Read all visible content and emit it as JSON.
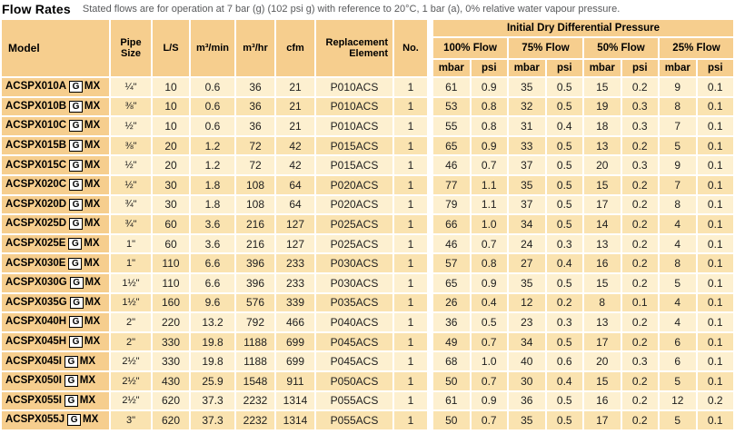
{
  "title_bar": {
    "title": "Flow Rates",
    "subtitle": "Stated flows are for operation at 7 bar (g) (102 psi g) with reference to 20°C, 1 bar (a), 0% relative water vapour pressure."
  },
  "colors": {
    "header_bg": "#f6ce8e",
    "row_light": "#fdf0d0",
    "row_dark": "#fae3b0",
    "grid_white": "#ffffff",
    "text": "#1d1d1d",
    "subtitle_text": "#58595b"
  },
  "left_table": {
    "columns": [
      "Model",
      "Pipe Size",
      "L/S",
      "m³/min",
      "m³/hr",
      "cfm",
      "Replacement Element",
      "No."
    ]
  },
  "right_table": {
    "title": "Initial Dry Differential Pressure",
    "flow_groups": [
      "100% Flow",
      "75% Flow",
      "50% Flow",
      "25% Flow"
    ],
    "units": [
      "mbar",
      "psi"
    ]
  },
  "rows": [
    {
      "model": "ACSPX010A",
      "badge": "G",
      "suffix": "MX",
      "pipe": "¼\"",
      "ls": "10",
      "m3min": "0.6",
      "m3hr": "36",
      "cfm": "21",
      "element": "P010ACS",
      "no": "1",
      "dp": [
        "61",
        "0.9",
        "35",
        "0.5",
        "15",
        "0.2",
        "9",
        "0.1"
      ]
    },
    {
      "model": "ACSPX010B",
      "badge": "G",
      "suffix": "MX",
      "pipe": "⅜\"",
      "ls": "10",
      "m3min": "0.6",
      "m3hr": "36",
      "cfm": "21",
      "element": "P010ACS",
      "no": "1",
      "dp": [
        "53",
        "0.8",
        "32",
        "0.5",
        "19",
        "0.3",
        "8",
        "0.1"
      ]
    },
    {
      "model": "ACSPX010C",
      "badge": "G",
      "suffix": "MX",
      "pipe": "½\"",
      "ls": "10",
      "m3min": "0.6",
      "m3hr": "36",
      "cfm": "21",
      "element": "P010ACS",
      "no": "1",
      "dp": [
        "55",
        "0.8",
        "31",
        "0.4",
        "18",
        "0.3",
        "7",
        "0.1"
      ]
    },
    {
      "model": "ACSPX015B",
      "badge": "G",
      "suffix": "MX",
      "pipe": "⅜\"",
      "ls": "20",
      "m3min": "1.2",
      "m3hr": "72",
      "cfm": "42",
      "element": "P015ACS",
      "no": "1",
      "dp": [
        "65",
        "0.9",
        "33",
        "0.5",
        "13",
        "0.2",
        "5",
        "0.1"
      ]
    },
    {
      "model": "ACSPX015C",
      "badge": "G",
      "suffix": "MX",
      "pipe": "½\"",
      "ls": "20",
      "m3min": "1.2",
      "m3hr": "72",
      "cfm": "42",
      "element": "P015ACS",
      "no": "1",
      "dp": [
        "46",
        "0.7",
        "37",
        "0.5",
        "20",
        "0.3",
        "9",
        "0.1"
      ]
    },
    {
      "model": "ACSPX020C",
      "badge": "G",
      "suffix": "MX",
      "pipe": "½\"",
      "ls": "30",
      "m3min": "1.8",
      "m3hr": "108",
      "cfm": "64",
      "element": "P020ACS",
      "no": "1",
      "dp": [
        "77",
        "1.1",
        "35",
        "0.5",
        "15",
        "0.2",
        "7",
        "0.1"
      ]
    },
    {
      "model": "ACSPX020D",
      "badge": "G",
      "suffix": "MX",
      "pipe": "¾\"",
      "ls": "30",
      "m3min": "1.8",
      "m3hr": "108",
      "cfm": "64",
      "element": "P020ACS",
      "no": "1",
      "dp": [
        "79",
        "1.1",
        "37",
        "0.5",
        "17",
        "0.2",
        "8",
        "0.1"
      ]
    },
    {
      "model": "ACSPX025D",
      "badge": "G",
      "suffix": "MX",
      "pipe": "¾\"",
      "ls": "60",
      "m3min": "3.6",
      "m3hr": "216",
      "cfm": "127",
      "element": "P025ACS",
      "no": "1",
      "dp": [
        "66",
        "1.0",
        "34",
        "0.5",
        "14",
        "0.2",
        "4",
        "0.1"
      ]
    },
    {
      "model": "ACSPX025E",
      "badge": "G",
      "suffix": "MX",
      "pipe": "1\"",
      "ls": "60",
      "m3min": "3.6",
      "m3hr": "216",
      "cfm": "127",
      "element": "P025ACS",
      "no": "1",
      "dp": [
        "46",
        "0.7",
        "24",
        "0.3",
        "13",
        "0.2",
        "4",
        "0.1"
      ]
    },
    {
      "model": "ACSPX030E",
      "badge": "G",
      "suffix": "MX",
      "pipe": "1\"",
      "ls": "110",
      "m3min": "6.6",
      "m3hr": "396",
      "cfm": "233",
      "element": "P030ACS",
      "no": "1",
      "dp": [
        "57",
        "0.8",
        "27",
        "0.4",
        "16",
        "0.2",
        "8",
        "0.1"
      ]
    },
    {
      "model": "ACSPX030G",
      "badge": "G",
      "suffix": "MX",
      "pipe": "1½\"",
      "ls": "110",
      "m3min": "6.6",
      "m3hr": "396",
      "cfm": "233",
      "element": "P030ACS",
      "no": "1",
      "dp": [
        "65",
        "0.9",
        "35",
        "0.5",
        "15",
        "0.2",
        "5",
        "0.1"
      ]
    },
    {
      "model": "ACSPX035G",
      "badge": "G",
      "suffix": "MX",
      "pipe": "1½\"",
      "ls": "160",
      "m3min": "9.6",
      "m3hr": "576",
      "cfm": "339",
      "element": "P035ACS",
      "no": "1",
      "dp": [
        "26",
        "0.4",
        "12",
        "0.2",
        "8",
        "0.1",
        "4",
        "0.1"
      ]
    },
    {
      "model": "ACSPX040H",
      "badge": "G",
      "suffix": "MX",
      "pipe": "2\"",
      "ls": "220",
      "m3min": "13.2",
      "m3hr": "792",
      "cfm": "466",
      "element": "P040ACS",
      "no": "1",
      "dp": [
        "36",
        "0.5",
        "23",
        "0.3",
        "13",
        "0.2",
        "4",
        "0.1"
      ]
    },
    {
      "model": "ACSPX045H",
      "badge": "G",
      "suffix": "MX",
      "pipe": "2\"",
      "ls": "330",
      "m3min": "19.8",
      "m3hr": "1188",
      "cfm": "699",
      "element": "P045ACS",
      "no": "1",
      "dp": [
        "49",
        "0.7",
        "34",
        "0.5",
        "17",
        "0.2",
        "6",
        "0.1"
      ]
    },
    {
      "model": "ACSPX045I",
      "badge": "G",
      "suffix": "MX",
      "pipe": "2½\"",
      "ls": "330",
      "m3min": "19.8",
      "m3hr": "1188",
      "cfm": "699",
      "element": "P045ACS",
      "no": "1",
      "dp": [
        "68",
        "1.0",
        "40",
        "0.6",
        "20",
        "0.3",
        "6",
        "0.1"
      ]
    },
    {
      "model": "ACSPX050I",
      "badge": "G",
      "suffix": "MX",
      "pipe": "2½\"",
      "ls": "430",
      "m3min": "25.9",
      "m3hr": "1548",
      "cfm": "911",
      "element": "P050ACS",
      "no": "1",
      "dp": [
        "50",
        "0.7",
        "30",
        "0.4",
        "15",
        "0.2",
        "5",
        "0.1"
      ]
    },
    {
      "model": "ACSPX055I",
      "badge": "G",
      "suffix": "MX",
      "pipe": "2½\"",
      "ls": "620",
      "m3min": "37.3",
      "m3hr": "2232",
      "cfm": "1314",
      "element": "P055ACS",
      "no": "1",
      "dp": [
        "61",
        "0.9",
        "36",
        "0.5",
        "16",
        "0.2",
        "12",
        "0.2"
      ]
    },
    {
      "model": "ACSPX055J",
      "badge": "G",
      "suffix": "MX",
      "pipe": "3\"",
      "ls": "620",
      "m3min": "37.3",
      "m3hr": "2232",
      "cfm": "1314",
      "element": "P055ACS",
      "no": "1",
      "dp": [
        "50",
        "0.7",
        "35",
        "0.5",
        "17",
        "0.2",
        "5",
        "0.1"
      ]
    }
  ]
}
